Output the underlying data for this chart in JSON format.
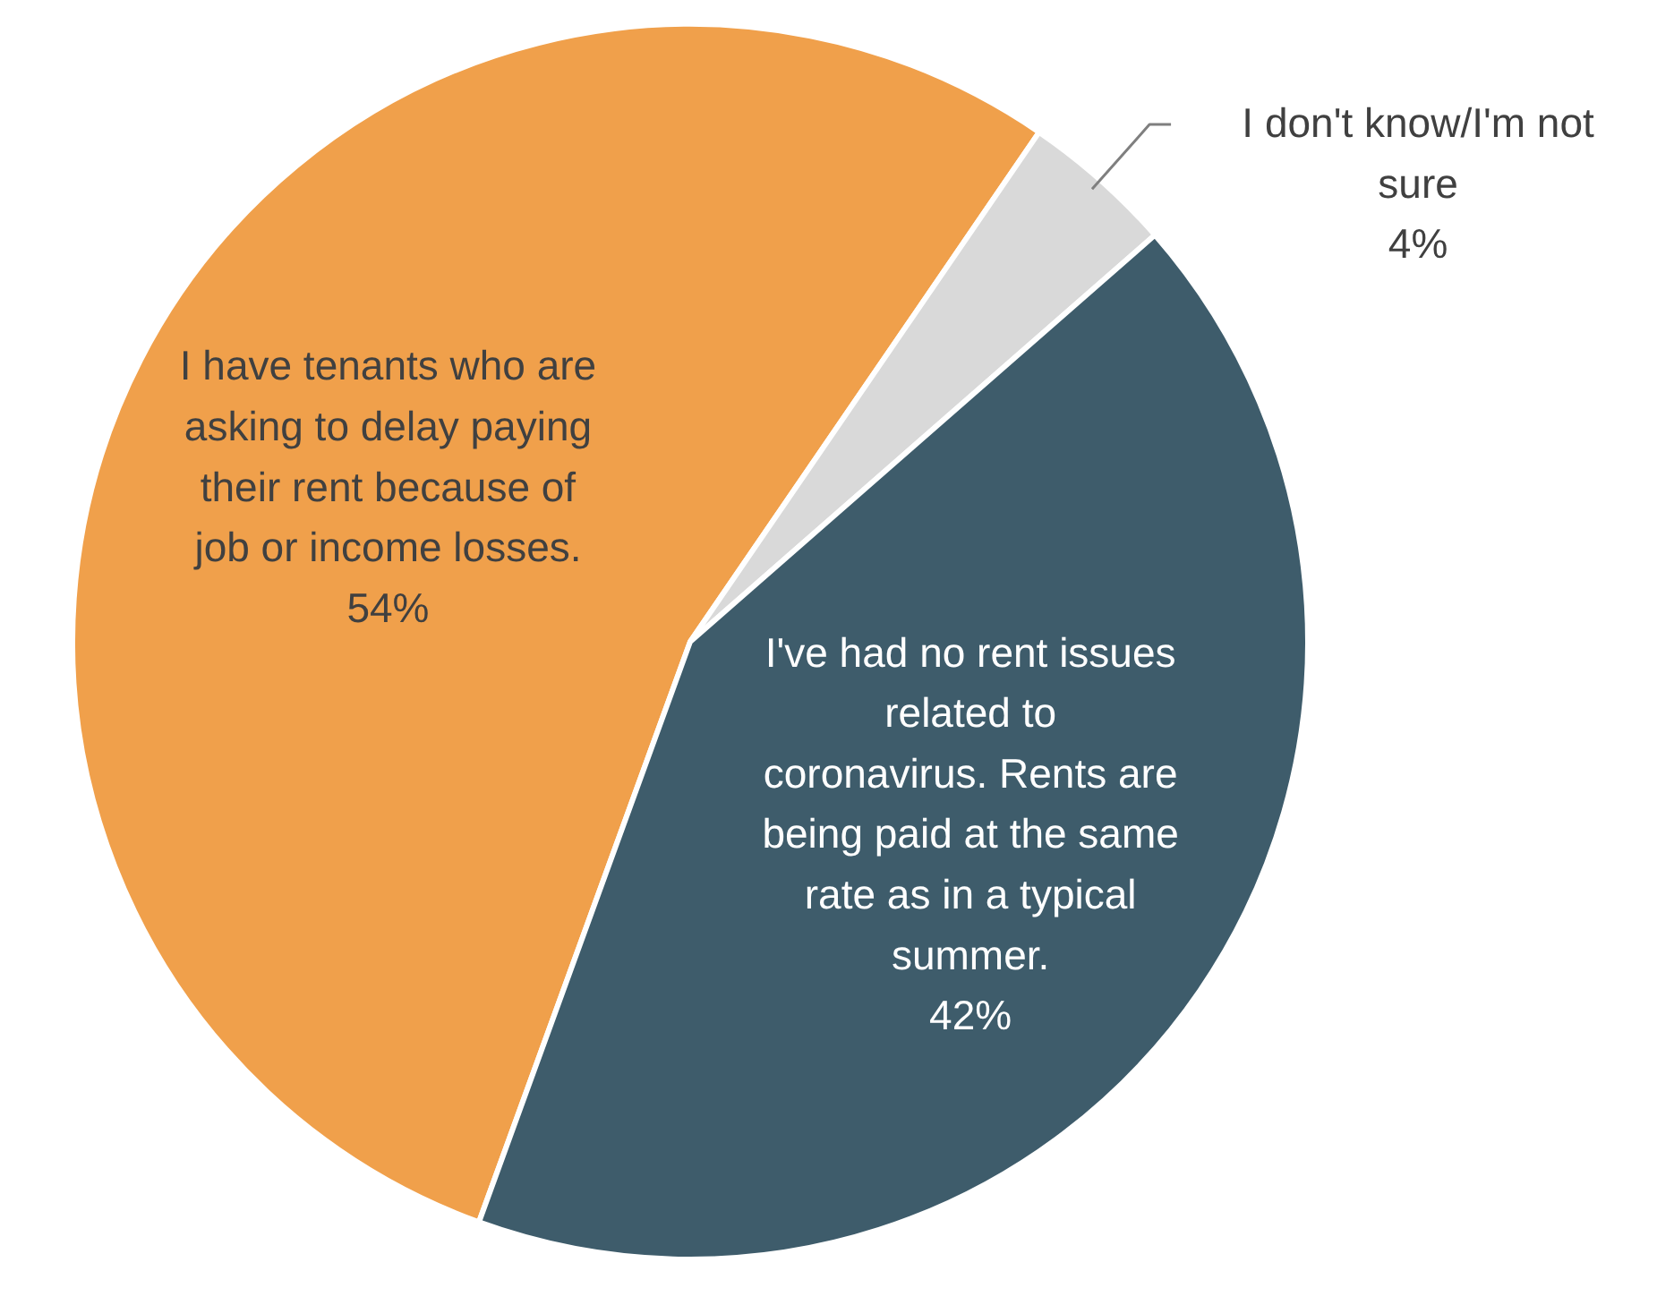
{
  "chart_data": {
    "type": "pie",
    "categories": [
      "I have tenants who are\nasking to delay paying\ntheir rent because of\njob or income losses.",
      "I don't know/I'm not\nsure",
      "I've had no rent issues\nrelated to\ncoronavirus. Rents are\nbeing paid at the same\nrate as in a typical\nsummer."
    ],
    "values": [
      54,
      4,
      42
    ],
    "value_labels": [
      "54%",
      "4%",
      "42%"
    ],
    "colors": [
      "#f0a04b",
      "#d9d9d9",
      "#3e5c6b"
    ]
  }
}
